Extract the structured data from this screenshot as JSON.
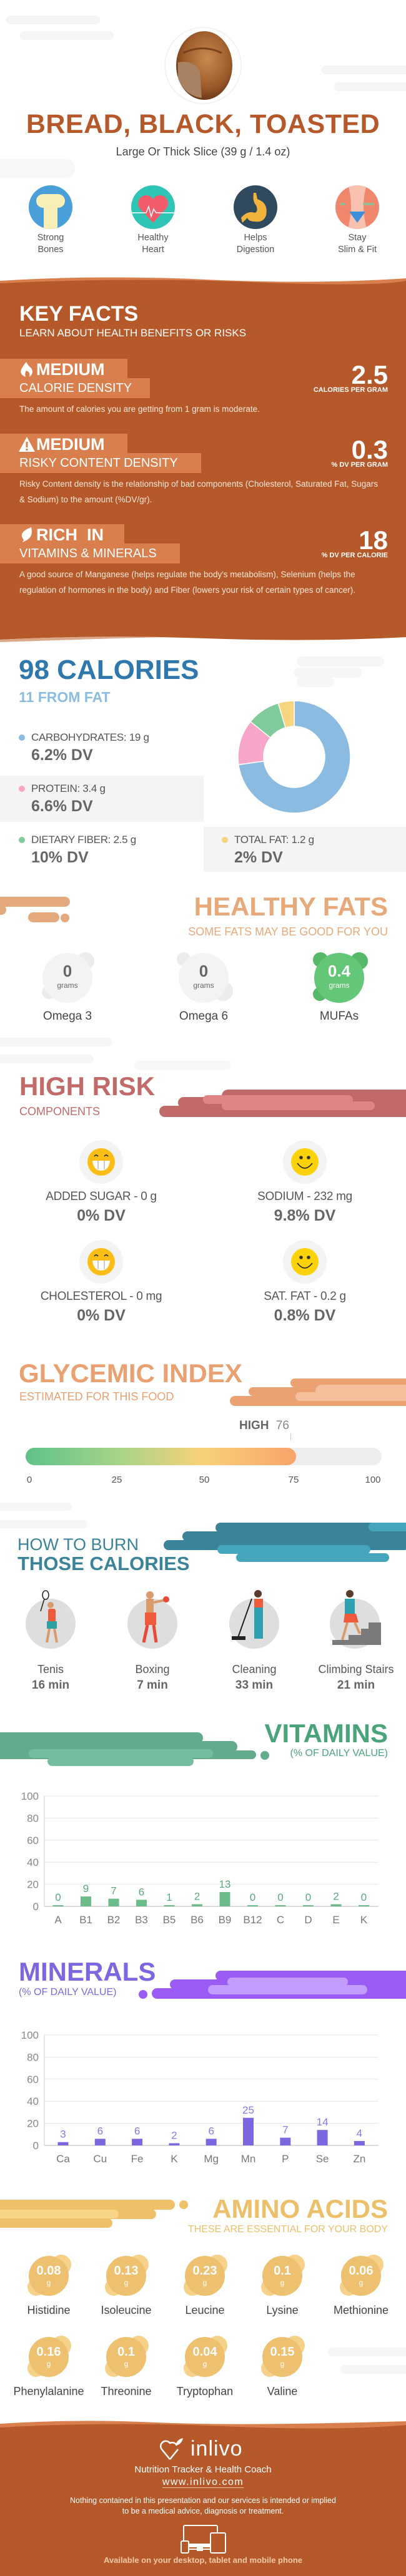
{
  "header": {
    "title": "BREAD, BLACK, TOASTED",
    "serving": "Large Or Thick Slice (39 g / 1.4 oz)"
  },
  "benefits": [
    {
      "line1": "Strong",
      "line2": "Bones",
      "icon": "bone-icon",
      "color": "#4a9fd8"
    },
    {
      "line1": "Healthy",
      "line2": "Heart",
      "icon": "heart-icon",
      "color": "#2ec4b6"
    },
    {
      "line1": "Helps",
      "line2": "Digestion",
      "icon": "stomach-icon",
      "color": "#2f4a5c"
    },
    {
      "line1": "Stay",
      "line2": "Slim & Fit",
      "icon": "waist-icon",
      "color": "#f0876c"
    }
  ],
  "key_facts": {
    "title": "KEY FACTS",
    "subtitle": "LEARN ABOUT HEALTH BENEFITS OR RISKS",
    "items": [
      {
        "level": "MEDIUM",
        "category": "CALORIE DENSITY",
        "value": "2.5",
        "unit": "CALORIES PER GRAM",
        "description": "The amount of calories you are getting from 1 gram is moderate.",
        "icon": "flame-icon"
      },
      {
        "level": "MEDIUM",
        "category": "RISKY CONTENT DENSITY",
        "value": "0.3",
        "unit": "% DV PER GRAM",
        "description": "Risky Content density is the relationship of bad components (Cholesterol, Saturated Fat, Sugars & Sodium) to the amount (%DV/gr).",
        "icon": "warning-icon"
      },
      {
        "level": "RICH  IN",
        "category": "VITAMINS & MINERALS",
        "value": "18",
        "unit": "% DV PER CALORIE",
        "description": "A good source of Manganese (helps regulate the body's metabolism), Selenium (helps the regulation of hormones in the body) and Fiber (lowers your risk of certain types of cancer).",
        "icon": "leaf-icon"
      }
    ]
  },
  "calories": {
    "title": "98 CALORIES",
    "subtitle": "11 FROM FAT",
    "macros": [
      {
        "label": "CARBOHYDRATES: 19 g",
        "dv": "6.2% DV",
        "color": "#8bbbe0"
      },
      {
        "label": "PROTEIN: 3.4 g",
        "dv": "6.6% DV",
        "color": "#f7a6c9"
      },
      {
        "label": "DIETARY FIBER: 2.5 g",
        "dv": "10% DV",
        "color": "#7fcb9c"
      },
      {
        "label": "TOTAL FAT: 1.2 g",
        "dv": "2% DV",
        "color": "#f7d47f"
      }
    ]
  },
  "healthy_fats": {
    "title": "HEALTHY FATS",
    "subtitle": "SOME FATS MAY BE GOOD FOR YOU",
    "items": [
      {
        "value": "0",
        "unit": "grams",
        "label": "Omega 3"
      },
      {
        "value": "0",
        "unit": "grams",
        "label": "Omega 6"
      },
      {
        "value": "0.4",
        "unit": "grams",
        "label": "MUFAs"
      }
    ]
  },
  "high_risk": {
    "title": "HIGH RISK",
    "subtitle": "COMPONENTS",
    "items": [
      {
        "label": "ADDED SUGAR - 0 g",
        "dv": "0% DV",
        "icon": "grin-emoji-icon"
      },
      {
        "label": "SODIUM - 232 mg",
        "dv": "9.8% DV",
        "icon": "smile-emoji-icon"
      },
      {
        "label": "CHOLESTEROL - 0 mg",
        "dv": "0% DV",
        "icon": "grin-emoji-icon"
      },
      {
        "label": "SAT. FAT - 0.2 g",
        "dv": "0.8% DV",
        "icon": "smile-emoji-icon"
      }
    ]
  },
  "glycemic": {
    "title": "GLYCEMIC INDEX",
    "subtitle": "ESTIMATED FOR THIS FOOD",
    "level": "HIGH",
    "value": 76,
    "value_label": "76",
    "ticks": [
      "0",
      "25",
      "50",
      "75",
      "100"
    ]
  },
  "burn": {
    "title_top": "HOW TO BURN",
    "title_bottom": "THOSE CALORIES",
    "items": [
      {
        "activity": "Tenis",
        "time": "16 min",
        "icon": "tennis-player-icon"
      },
      {
        "activity": "Boxing",
        "time": "7 min",
        "icon": "boxer-icon"
      },
      {
        "activity": "Cleaning",
        "time": "33 min",
        "icon": "sweeping-person-icon"
      },
      {
        "activity": "Climbing Stairs",
        "time": "21 min",
        "icon": "stairs-climber-icon"
      }
    ]
  },
  "vitamins": {
    "title": "VITAMINS",
    "subtitle": "(% OF DAILY VALUE)"
  },
  "minerals": {
    "title": "MINERALS",
    "subtitle": "(% OF DAILY VALUE)"
  },
  "amino": {
    "title": "AMINO ACIDS",
    "subtitle": "THESE ARE ESSENTIAL FOR YOUR BODY",
    "items": [
      {
        "value": "0.08",
        "unit": "g",
        "name": "Histidine"
      },
      {
        "value": "0.13",
        "unit": "g",
        "name": "Isoleucine"
      },
      {
        "value": "0.23",
        "unit": "g",
        "name": "Leucine"
      },
      {
        "value": "0.1",
        "unit": "g",
        "name": "Lysine"
      },
      {
        "value": "0.06",
        "unit": "g",
        "name": "Methionine"
      },
      {
        "value": "0.16",
        "unit": "g",
        "name": "Phenylalanine"
      },
      {
        "value": "0.1",
        "unit": "g",
        "name": "Threonine"
      },
      {
        "value": "0.04",
        "unit": "g",
        "name": "Tryptophan"
      },
      {
        "value": "0.15",
        "unit": "g",
        "name": "Valine"
      }
    ]
  },
  "footer": {
    "brand": "inlivo",
    "tagline": "Nutrition Tracker & Health Coach",
    "url": "www.inlivo.com",
    "disclaimer_1": "Nothing contained in this presentation and our services is intended or implied",
    "disclaimer_2": "to be a medical advice, diagnosis or treatment.",
    "availability": "Available on your desktop, tablet and mobile phone"
  },
  "colors": {
    "brand": "#b5592a",
    "brand_light": "#d97f4e",
    "calories": "#2e78ad",
    "fats": "#e8a97a",
    "risk": "#c26a6a",
    "glycemic": "#eaa171",
    "burn": "#3a8398",
    "vitamins": "#4aa37a",
    "minerals": "#7d67e0",
    "amino": "#ecc06a"
  },
  "chart_data": [
    {
      "type": "pie",
      "variant": "donut",
      "categories": [
        "Carbohydrates",
        "Protein",
        "Dietary Fiber",
        "Total Fat"
      ],
      "values": [
        19,
        3.4,
        2.5,
        1.2
      ],
      "unit": "g",
      "colors": [
        "#8bbbe0",
        "#f7a6c9",
        "#7fcb9c",
        "#f7d47f"
      ]
    },
    {
      "type": "bar",
      "categories": [
        "A",
        "B1",
        "B2",
        "B3",
        "B5",
        "B6",
        "B9",
        "B12",
        "C",
        "D",
        "E",
        "K"
      ],
      "values": [
        0,
        9,
        7,
        6,
        1,
        2,
        13,
        0,
        0,
        0,
        2,
        0
      ],
      "ylim": [
        0,
        100
      ],
      "yticks": [
        0,
        20,
        40,
        60,
        80,
        100
      ],
      "grid": true,
      "color": "#6bbb8b",
      "label_color": "#5aa87c"
    },
    {
      "type": "bar",
      "categories": [
        "Ca",
        "Cu",
        "Fe",
        "K",
        "Mg",
        "Mn",
        "P",
        "Se",
        "Zn"
      ],
      "values": [
        3,
        6,
        6,
        2,
        6,
        25,
        7,
        14,
        4
      ],
      "ylim": [
        0,
        100
      ],
      "yticks": [
        0,
        20,
        40,
        60,
        80,
        100
      ],
      "grid": true,
      "color": "#7d67e0",
      "label_color": "#8a78e0"
    }
  ]
}
